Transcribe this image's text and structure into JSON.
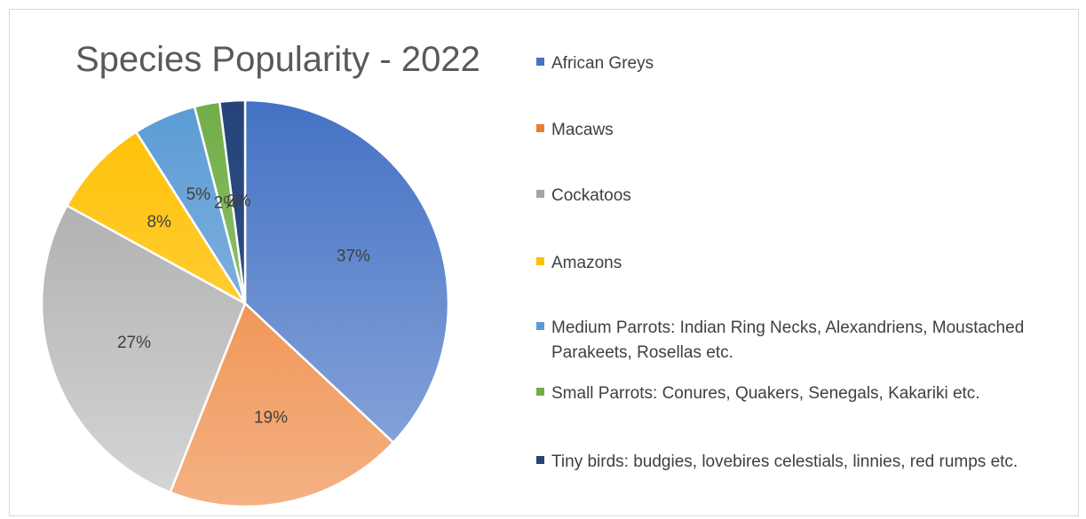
{
  "chart_data": {
    "type": "pie",
    "title": "Species Popularity - 2022",
    "legend_position": "right",
    "slices": [
      {
        "name": "African Greys",
        "value": 37,
        "label": "37%",
        "color": "#4472c4",
        "color_light": "#8faadc"
      },
      {
        "name": "Macaws",
        "value": 19,
        "label": "19%",
        "color": "#ed7d31",
        "color_light": "#f4b183"
      },
      {
        "name": "Cockatoos",
        "value": 27,
        "label": "27%",
        "color": "#a5a5a5",
        "color_light": "#d6d6d6"
      },
      {
        "name": "Amazons",
        "value": 8,
        "label": "8%",
        "color": "#ffc000",
        "color_light": "#ffd966"
      },
      {
        "name": "Medium Parrots: Indian Ring Necks, Alexandriens, Moustached Parakeets, Rosellas etc.",
        "value": 5,
        "label": "5%",
        "color": "#5b9bd5",
        "color_light": "#9dc3e6"
      },
      {
        "name": "Small Parrots: Conures, Quakers, Senegals, Kakariki etc.",
        "value": 2,
        "label": "2%",
        "color": "#70ad47",
        "color_light": "#a9d18e"
      },
      {
        "name": "Tiny birds: budgies, lovebires celestials, linnies, red rumps etc.",
        "value": 2,
        "label": "2%",
        "color": "#264478",
        "color_light": "#2f5597"
      }
    ]
  }
}
